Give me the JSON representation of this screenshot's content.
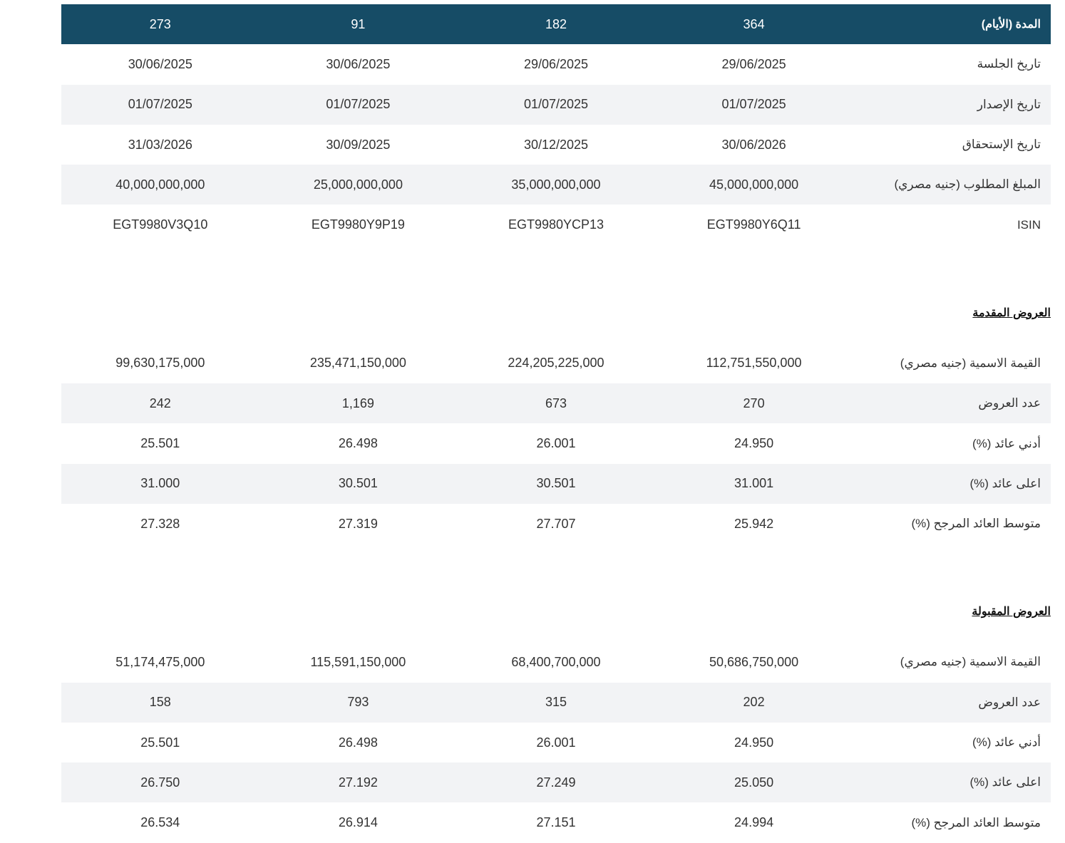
{
  "header": {
    "label": "المدة (الأيام)",
    "values": [
      "364",
      "182",
      "91",
      "273"
    ]
  },
  "info_rows": [
    {
      "label": "تاريخ الجلسة",
      "values": [
        "29/06/2025",
        "29/06/2025",
        "30/06/2025",
        "30/06/2025"
      ]
    },
    {
      "label": "تاريخ الإصدار",
      "values": [
        "01/07/2025",
        "01/07/2025",
        "01/07/2025",
        "01/07/2025"
      ]
    },
    {
      "label": "تاريخ الإستحقاق",
      "values": [
        "30/06/2026",
        "30/12/2025",
        "30/09/2025",
        "31/03/2026"
      ]
    },
    {
      "label": "المبلغ المطلوب (جنيه مصري)",
      "values": [
        "45,000,000,000",
        "35,000,000,000",
        "25,000,000,000",
        "40,000,000,000"
      ]
    },
    {
      "label": "ISIN",
      "values": [
        "EGT9980Y6Q11",
        "EGT9980YCP13",
        "EGT9980Y9P19",
        "EGT9980V3Q10"
      ]
    }
  ],
  "submitted": {
    "title": "العروض المقدمة",
    "rows": [
      {
        "label": "القيمة الاسمية (جنيه مصري)",
        "values": [
          "112,751,550,000",
          "224,205,225,000",
          "235,471,150,000",
          "99,630,175,000"
        ]
      },
      {
        "label": "عدد العروض",
        "values": [
          "270",
          "673",
          "1,169",
          "242"
        ]
      },
      {
        "label": "أدني عائد (%)",
        "values": [
          "24.950",
          "26.001",
          "26.498",
          "25.501"
        ]
      },
      {
        "label": "اعلى عائد (%)",
        "values": [
          "31.001",
          "30.501",
          "30.501",
          "31.000"
        ]
      },
      {
        "label": "متوسط العائد المرجح (%)",
        "values": [
          "25.942",
          "27.707",
          "27.319",
          "27.328"
        ]
      }
    ]
  },
  "accepted": {
    "title": "العروض المقبولة",
    "rows": [
      {
        "label": "القيمة الاسمية (جنيه مصري)",
        "values": [
          "50,686,750,000",
          "68,400,700,000",
          "115,591,150,000",
          "51,174,475,000"
        ]
      },
      {
        "label": "عدد العروض",
        "values": [
          "202",
          "315",
          "793",
          "158"
        ]
      },
      {
        "label": "أدني عائد (%)",
        "values": [
          "24.950",
          "26.001",
          "26.498",
          "25.501"
        ]
      },
      {
        "label": "اعلى عائد (%)",
        "values": [
          "25.050",
          "27.249",
          "27.192",
          "26.750"
        ]
      },
      {
        "label": "متوسط العائد المرجح (%)",
        "values": [
          "24.994",
          "27.151",
          "26.914",
          "26.534"
        ]
      }
    ]
  },
  "colors": {
    "header_bg": "#164c66",
    "alt_row_bg": "#f2f3f5"
  }
}
